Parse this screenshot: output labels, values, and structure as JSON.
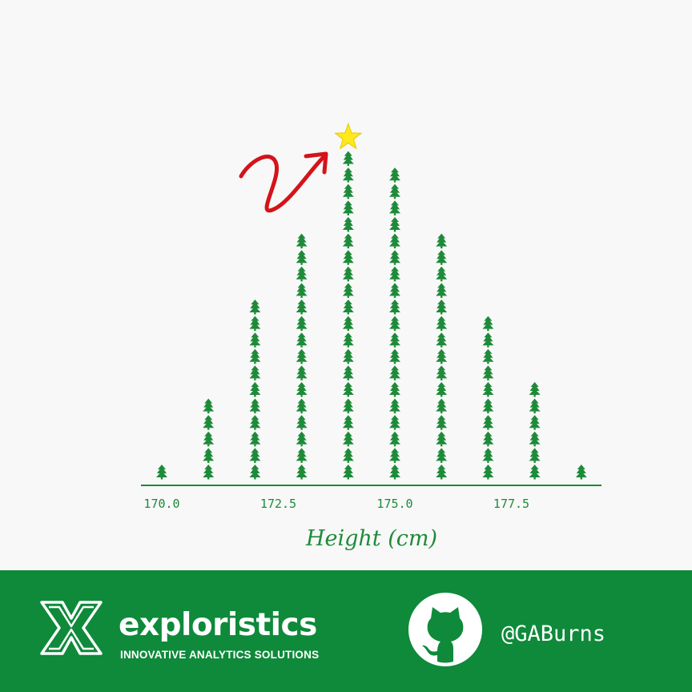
{
  "chart_data": {
    "type": "dot",
    "xlabel": "Height (cm)",
    "xlim": [
      169.5,
      179.5
    ],
    "ticks": [
      170.0,
      172.5,
      175.0,
      177.5
    ],
    "tick_labels": [
      "170.0",
      "172.5",
      "175.0",
      "177.5"
    ],
    "x": [
      170,
      171,
      172,
      173,
      174,
      175,
      176,
      177,
      178,
      179
    ],
    "counts": [
      1,
      5,
      11,
      15,
      20,
      19,
      15,
      10,
      6,
      1
    ],
    "marker": "christmas-tree",
    "marker_color": "#1e8a3a",
    "peak_marker": "star",
    "peak_marker_color": "#ffe81c",
    "annotation": "red-arrow"
  },
  "footer": {
    "brand_name": "exploristics",
    "tagline": "INNOVATIVE ANALYTICS SOLUTIONS",
    "github_handle": "@GABurns",
    "background": "#0e8a3a"
  }
}
